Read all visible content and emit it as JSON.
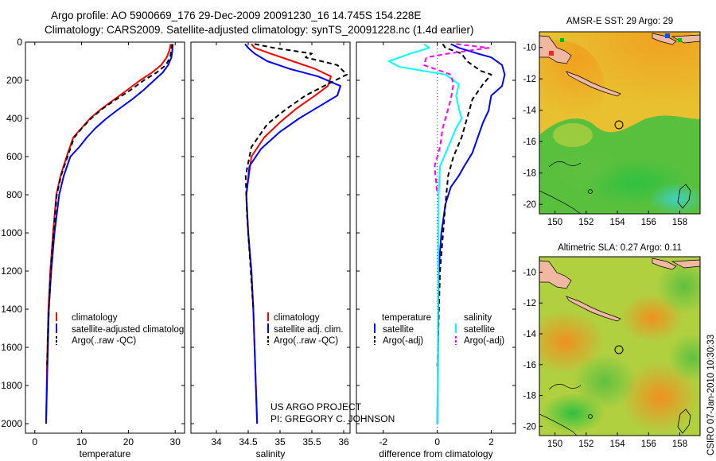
{
  "title_line1": "Argo profile: AO 5900669_176 29-Dec-2009 20091230_16 14.745S 154.228E",
  "title_line2": "Climatology: CARS2009. Satellite-adjusted climatology: synTS_20091228.nc (1.4d earlier)",
  "credit_line1": "US ARGO PROJECT",
  "credit_line2": "PI: GREGORY C. JOHNSON",
  "side_stamp": "CSIRO 07-Jan-2010 10:30:33",
  "colors": {
    "clim": "#ff0000",
    "sat": "#0000ff",
    "argo": "#000000",
    "sat_s": "#00ffff",
    "argo_s": "#ff00ff"
  },
  "chart_data": [
    {
      "name": "temperature",
      "type": "line",
      "xlabel": "temperature",
      "xlim": [
        -2,
        32
      ],
      "ylim": [
        2050,
        0
      ],
      "xticks": [
        0,
        10,
        20,
        30
      ],
      "yticks": [
        0,
        200,
        400,
        600,
        800,
        1000,
        1200,
        1400,
        1600,
        1800,
        2000
      ],
      "legend": [
        "climatology",
        "satellite-adjusted climatolog",
        "Argo(..raw -QC)"
      ],
      "series": [
        {
          "name": "climatology",
          "color": "clim",
          "dash": false,
          "x": [
            29.0,
            28.8,
            28.2,
            27.0,
            25.0,
            22.5,
            19.8,
            17.0,
            14.2,
            11.8,
            10.0,
            8.2,
            6.8,
            5.5,
            4.6,
            3.9,
            3.3,
            2.9,
            2.6,
            2.4
          ],
          "y": [
            10,
            40,
            80,
            120,
            160,
            200,
            250,
            300,
            350,
            400,
            450,
            500,
            600,
            700,
            800,
            1000,
            1200,
            1400,
            1700,
            2000
          ]
        },
        {
          "name": "satellite",
          "color": "sat",
          "dash": false,
          "x": [
            29.5,
            29.4,
            29.2,
            28.5,
            27.3,
            25.5,
            23.3,
            20.8,
            18.0,
            15.3,
            13.0,
            11.1,
            9.5,
            7.6,
            6.2,
            5.2,
            4.2,
            3.5,
            3.0,
            2.7,
            2.4
          ],
          "y": [
            10,
            40,
            80,
            120,
            160,
            200,
            250,
            300,
            350,
            400,
            450,
            500,
            550,
            600,
            700,
            800,
            1000,
            1200,
            1400,
            1700,
            2000
          ]
        },
        {
          "name": "argo",
          "color": "argo",
          "dash": true,
          "x": [
            29.3,
            29.2,
            28.9,
            28.0,
            26.0,
            23.3,
            20.5,
            17.4,
            14.4,
            12.0,
            10.1,
            8.4,
            7.0,
            5.6,
            4.7,
            4.0,
            3.4,
            3.0,
            2.6
          ],
          "y": [
            10,
            40,
            80,
            120,
            160,
            200,
            250,
            300,
            350,
            400,
            450,
            500,
            600,
            700,
            800,
            1000,
            1200,
            1400,
            1700
          ]
        }
      ]
    },
    {
      "name": "salinity",
      "type": "line",
      "xlabel": "salinity",
      "xlim": [
        33.6,
        36.1
      ],
      "ylim": [
        2050,
        0
      ],
      "xticks": [
        34,
        34.5,
        35,
        35.5,
        36
      ],
      "yticks": [
        0,
        200,
        400,
        600,
        800,
        1000,
        1200,
        1400,
        1600,
        1800,
        2000
      ],
      "legend": [
        "climatology",
        "satellite adj. clim.",
        "Argo(..raw -QC)"
      ],
      "series": [
        {
          "name": "climatology",
          "color": "clim",
          "dash": false,
          "x": [
            34.55,
            34.6,
            34.85,
            35.2,
            35.55,
            35.8,
            35.75,
            35.55,
            35.25,
            35.0,
            34.75,
            34.55,
            34.47,
            34.5,
            34.55,
            34.58,
            34.6,
            34.62,
            34.64
          ],
          "y": [
            10,
            30,
            60,
            100,
            140,
            180,
            230,
            280,
            350,
            420,
            500,
            600,
            800,
            1000,
            1200,
            1400,
            1600,
            1800,
            2000
          ]
        },
        {
          "name": "satellite",
          "color": "sat",
          "dash": false,
          "x": [
            34.45,
            34.5,
            34.6,
            34.8,
            35.15,
            35.6,
            35.95,
            35.9,
            35.65,
            35.3,
            35.0,
            34.7,
            34.52,
            34.47,
            34.5,
            34.55,
            34.58,
            34.6,
            34.62,
            34.64
          ],
          "y": [
            10,
            30,
            60,
            100,
            140,
            180,
            230,
            280,
            330,
            400,
            470,
            560,
            650,
            800,
            1000,
            1200,
            1400,
            1600,
            1800,
            2000
          ]
        },
        {
          "name": "argo",
          "color": "argo",
          "dash": true,
          "x": [
            34.6,
            34.9,
            35.5,
            35.4,
            35.9,
            36.05,
            35.75,
            35.4,
            35.1,
            34.8,
            34.55,
            34.46,
            34.48,
            34.52,
            34.56,
            34.58
          ],
          "y": [
            10,
            30,
            60,
            80,
            120,
            170,
            220,
            280,
            350,
            430,
            550,
            700,
            900,
            1100,
            1300,
            1400
          ]
        }
      ]
    },
    {
      "name": "difference",
      "type": "line",
      "xlabel": "difference from climatology",
      "xlim": [
        -3.0,
        2.9
      ],
      "ylim": [
        2050,
        0
      ],
      "xticks": [
        -2,
        0,
        2
      ],
      "yticks": [
        0,
        200,
        400,
        600,
        800,
        1000,
        1200,
        1400,
        1600,
        1800,
        2000
      ],
      "legend_temperature": [
        "temperature",
        "satellite",
        "Argo(-adj)"
      ],
      "legend_salinity": [
        "salinity",
        "satellite",
        "Argo(-adj)"
      ],
      "series": [
        {
          "name": "satellite temperature",
          "color": "sat",
          "dash": false,
          "x": [
            0.5,
            0.8,
            1.5,
            2.0,
            2.4,
            2.5,
            2.4,
            2.0,
            1.9,
            1.7,
            1.5,
            1.3,
            1.0,
            0.8,
            0.5,
            0.3,
            0.15,
            0.05,
            0.0
          ],
          "y": [
            10,
            30,
            60,
            80,
            120,
            170,
            230,
            280,
            360,
            420,
            500,
            580,
            650,
            700,
            760,
            850,
            1000,
            1200,
            2000
          ]
        },
        {
          "name": "argo temperature",
          "color": "argo",
          "dash": true,
          "x": [
            0.2,
            0.3,
            0.9,
            1.1,
            1.6,
            2.0,
            1.7,
            1.4,
            1.3,
            1.1,
            0.9,
            0.6,
            0.4,
            0.3,
            0.1,
            0.0
          ],
          "y": [
            10,
            30,
            60,
            100,
            150,
            170,
            220,
            280,
            300,
            400,
            500,
            600,
            700,
            850,
            1200,
            1700
          ]
        },
        {
          "name": "satellite salinity",
          "color": "sat_s",
          "dash": false,
          "x": [
            -0.5,
            -0.3,
            -1.0,
            -1.8,
            -1.4,
            0.3,
            0.8,
            0.7,
            0.8,
            0.9,
            0.7,
            0.4,
            0.1,
            0.05,
            0.0
          ],
          "y": [
            10,
            30,
            60,
            100,
            130,
            170,
            220,
            280,
            350,
            400,
            450,
            550,
            650,
            800,
            2000
          ]
        },
        {
          "name": "argo salinity",
          "color": "argo_s",
          "dash": true,
          "x": [
            0.7,
            1.9,
            0.4,
            -0.4,
            -0.5,
            0.5,
            0.6,
            0.5,
            0.4,
            0.2,
            0.1,
            -0.1,
            0.0
          ],
          "y": [
            10,
            30,
            60,
            80,
            120,
            170,
            220,
            300,
            350,
            450,
            550,
            650,
            800
          ]
        }
      ]
    }
  ],
  "maps": [
    {
      "title": "AMSR-E SST: 29 Argo: 29",
      "xticks": [
        "150",
        "152",
        "154",
        "156",
        "158"
      ],
      "yticks": [
        "-10",
        "-12",
        "-14",
        "-16",
        "-18",
        "-20"
      ]
    },
    {
      "title": "Altimetric SLA: 0.27 Argo: 0.11",
      "xticks": [
        "150",
        "152",
        "154",
        "156",
        "158"
      ],
      "yticks": [
        "-10",
        "-12",
        "-14",
        "-16",
        "-18",
        "-20"
      ]
    }
  ]
}
